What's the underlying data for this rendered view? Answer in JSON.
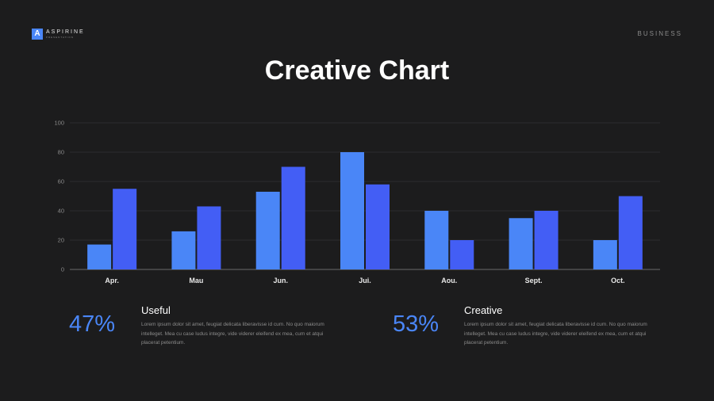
{
  "header": {
    "logo_letter": "A",
    "logo_name": "ASPIRINE",
    "logo_tagline": "PRESENTATION",
    "section": "BUSINESS"
  },
  "title": "Creative Chart",
  "chart_data": {
    "type": "bar",
    "categories": [
      "Apr.",
      "Mau",
      "Jun.",
      "Jui.",
      "Aou.",
      "Sept.",
      "Oct."
    ],
    "series": [
      {
        "values": [
          17,
          26,
          53,
          80,
          40,
          35,
          20
        ],
        "color": "#4a86f7"
      },
      {
        "values": [
          55,
          43,
          70,
          58,
          20,
          40,
          50
        ],
        "color": "#435ef5"
      }
    ],
    "ylim": [
      0,
      100
    ],
    "yticks": [
      0,
      20,
      40,
      60,
      80,
      100
    ],
    "grid": true
  },
  "stats": [
    {
      "percent": "47%",
      "heading": "Useful",
      "body": "Lorem ipsum dolor sit amet, feugiat delicata liberavisse id cum. No quo maiorum intelleget. Mea cu case ludus integre, vide viderer eleifend ex mea, cum et atqui placerat petentium."
    },
    {
      "percent": "53%",
      "heading": "Creative",
      "body": "Lorem ipsum dolor sit amet, feugiat delicata liberavisse id cum. No quo maiorum intelleget. Mea cu case ludus integre, vide viderer eleifend ex mea, cum et atqui placerat petentium."
    }
  ]
}
